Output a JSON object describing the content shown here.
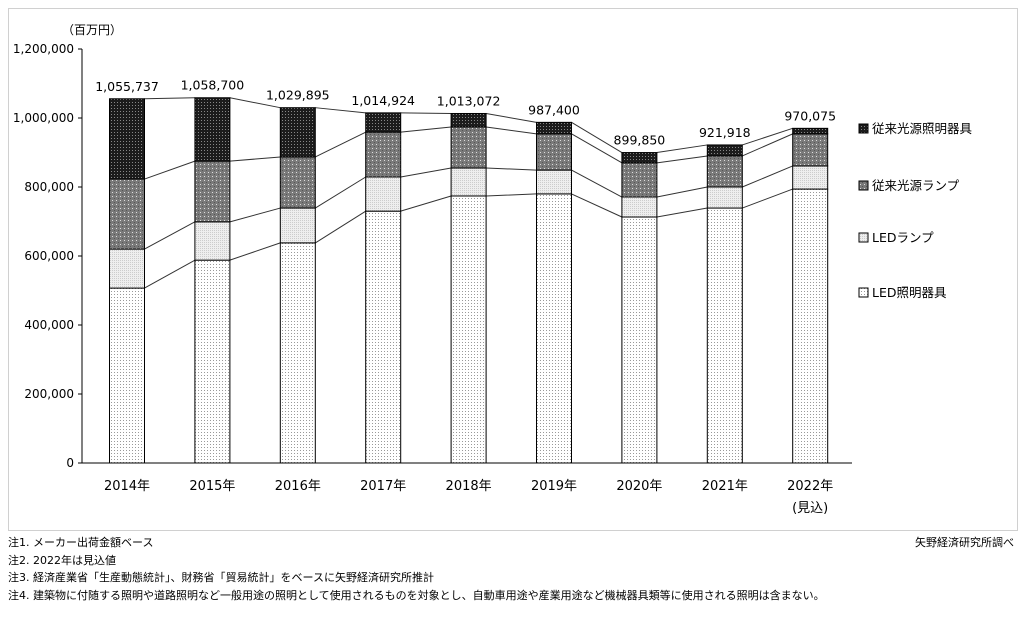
{
  "chart_data": {
    "type": "bar",
    "stacked": true,
    "unit_label": "（百万円）",
    "categories": [
      "2014年",
      "2015年",
      "2016年",
      "2017年",
      "2018年",
      "2019年",
      "2020年",
      "2021年",
      "2022年"
    ],
    "category_sublabels": [
      "",
      "",
      "",
      "",
      "",
      "",
      "",
      "",
      "(見込)"
    ],
    "ylim": [
      0,
      1200000
    ],
    "yticks": [
      "0",
      "200,000",
      "400,000",
      "600,000",
      "800,000",
      "1,000,000",
      "1,200,000"
    ],
    "ytick_values": [
      0,
      200000,
      400000,
      600000,
      800000,
      1000000,
      1200000
    ],
    "grid": false,
    "legend_position": "right",
    "series": [
      {
        "name": "LED照明器具",
        "values": [
          507000,
          588000,
          638000,
          730000,
          774000,
          780000,
          713000,
          739000,
          794000
        ],
        "color": "#ffffff",
        "pattern": "fine-dots"
      },
      {
        "name": "LEDランプ",
        "values": [
          113000,
          111000,
          101000,
          99000,
          81000,
          69000,
          58000,
          61000,
          67000
        ],
        "color": "#e0e0e0",
        "pattern": "light-grey"
      },
      {
        "name": "従来光源ランプ",
        "values": [
          203000,
          176000,
          148000,
          130000,
          119000,
          105000,
          99000,
          90000,
          93000
        ],
        "color": "#808080",
        "pattern": "grey-dots"
      },
      {
        "name": "従来光源照明器具",
        "values": [
          232737,
          183700,
          142895,
          55924,
          39072,
          33400,
          29850,
          31918,
          16075
        ],
        "color": "#1a1a1a",
        "pattern": "dark"
      }
    ],
    "totals": [
      1055737,
      1058700,
      1029895,
      1014924,
      1013072,
      987400,
      899850,
      921918,
      970075
    ],
    "total_labels": [
      "1,055,737",
      "1,058,700",
      "1,029,895",
      "1,014,924",
      "1,013,072",
      "987,400",
      "899,850",
      "921,918",
      "970,075"
    ]
  },
  "notes": [
    "注1.  メーカー出荷金額ベース",
    "注2.  2022年は見込値",
    "注3.  経済産業省「生産動態統計」、財務省「貿易統計」をベースに矢野経済研究所推計",
    "注4.  建築物に付随する照明や道路照明など一般用途の照明として使用されるものを対象とし、自動車用途や産業用途など機械器具類等に使用される照明は含まない。"
  ],
  "source": "矢野経済研究所調べ"
}
